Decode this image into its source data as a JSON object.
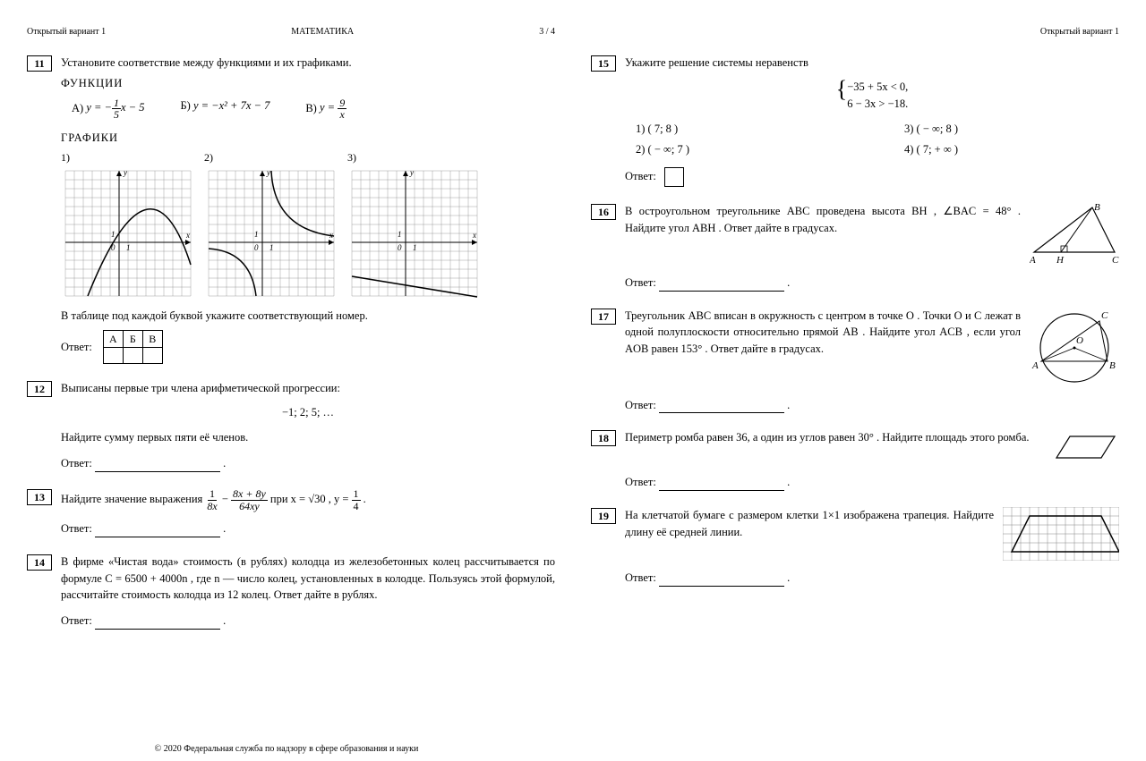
{
  "header": {
    "variant": "Открытый вариант 1",
    "subject": "МАТЕМАТИКА",
    "page": "3 / 4"
  },
  "footer": "© 2020 Федеральная служба по надзору в сфере образования и науки",
  "p11": {
    "num": "11",
    "text": "Установите соответствие между функциями и их графиками.",
    "h_func": "ФУНКЦИИ",
    "fA_label": "А)",
    "fB_label": "Б)",
    "fV_label": "В)",
    "fA_eq_pre": "y = −",
    "fA_frac_n": "1",
    "fA_frac_d": "5",
    "fA_eq_post": "x − 5",
    "fB_eq": "y = −x² + 7x − 7",
    "fV_eq_pre": "y = ",
    "fV_frac_n": "9",
    "fV_frac_d": "x",
    "h_graph": "ГРАФИКИ",
    "g1": "1)",
    "g2": "2)",
    "g3": "3)",
    "note": "В таблице под каждой буквой укажите соответствующий номер.",
    "answer": "Ответ:",
    "thA": "А",
    "thB": "Б",
    "thV": "В"
  },
  "p12": {
    "num": "12",
    "text": "Выписаны первые три члена арифметической прогрессии:",
    "seq": "−1; 2; 5; …",
    "text2": "Найдите сумму первых пяти её членов.",
    "answer": "Ответ:"
  },
  "p13": {
    "num": "13",
    "text_pre": "Найдите значение выражения ",
    "f1n": "1",
    "f1d": "8x",
    "minus": " − ",
    "f2n": "8x + 8y",
    "f2d": "64xy",
    "text_mid": " при x = √30 , y = ",
    "f3n": "1",
    "f3d": "4",
    "dot": ".",
    "answer": "Ответ:"
  },
  "p14": {
    "num": "14",
    "text": "В фирме «Чистая вода» стоимость (в рублях) колодца из железобетонных колец рассчитывается по формуле C = 6500 + 4000n , где n — число колец, установленных в колодце. Пользуясь этой формулой, рассчитайте стоимость колодца из 12 колец. Ответ дайте в рублях.",
    "answer": "Ответ:"
  },
  "p15": {
    "num": "15",
    "text": "Укажите решение системы неравенств",
    "sys1": "−35 + 5x < 0,",
    "sys2": "6 − 3x > −18.",
    "o1": "1)   ( 7; 8 )",
    "o2": "2)   ( − ∞; 7 )",
    "o3": "3)   ( − ∞; 8 )",
    "o4": "4)   ( 7; + ∞ )",
    "answer": "Ответ:"
  },
  "p16": {
    "num": "16",
    "text": "В остроугольном треугольнике ABC проведена высота BH , ∠BAC = 48° . Найдите угол ABH . Ответ дайте в градусах.",
    "labA": "A",
    "labH": "H",
    "labC": "C",
    "labB": "B",
    "answer": "Ответ:"
  },
  "p17": {
    "num": "17",
    "text": "Треугольник ABC вписан в окружность с центром в точке O . Точки O и C лежат в одной полуплоскости относительно прямой AB . Найдите угол ACB , если угол AOB равен 153° . Ответ дайте в градусах.",
    "labA": "A",
    "labB": "B",
    "labC": "C",
    "labO": "O",
    "answer": "Ответ:"
  },
  "p18": {
    "num": "18",
    "text": "Периметр ромба равен 36, а один из углов равен 30° . Найдите площадь этого ромба.",
    "answer": "Ответ:"
  },
  "p19": {
    "num": "19",
    "text": "На клетчатой бумаге с размером клетки 1×1 изображена трапеция. Найдите длину её средней линии.",
    "answer": "Ответ:"
  },
  "graph": {
    "grid_color": "#888",
    "axis_color": "#000",
    "curve_color": "#000",
    "size": 150
  }
}
